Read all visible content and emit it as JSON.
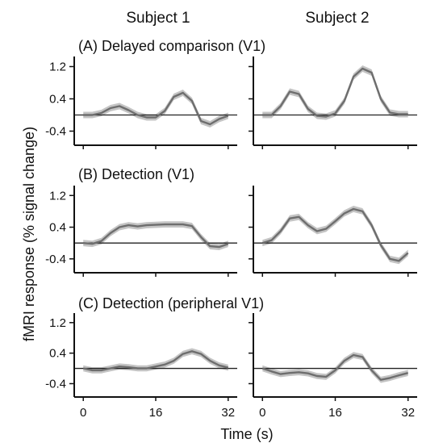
{
  "chart_data": {
    "type": "line",
    "columns": [
      "Subject 1",
      "Subject 2"
    ],
    "xlabel": "Time (s)",
    "ylabel": "fMRI response (% signal change)",
    "xlim": [
      -2,
      34
    ],
    "ylim": [
      -0.75,
      1.45
    ],
    "xticks": [
      "0",
      "16",
      "32"
    ],
    "yticks": [
      "1.2",
      "0.4",
      "-0.4"
    ],
    "x": [
      0,
      2,
      4,
      6,
      8,
      10,
      12,
      14,
      16,
      18,
      20,
      22,
      24,
      26,
      28,
      30,
      32
    ],
    "band_halfwidth": 0.08,
    "colors": {
      "line": "#6e6e6e",
      "band": "#c4c4c4",
      "axis": "#111111",
      "baseline": "#222222"
    },
    "panels": [
      {
        "title": "(A) Delayed comparison (V1)",
        "series": [
          {
            "subject": "Subject 1",
            "values": [
              0.0,
              0.0,
              0.05,
              0.17,
              0.22,
              0.12,
              0.0,
              -0.06,
              -0.06,
              0.1,
              0.45,
              0.55,
              0.35,
              -0.15,
              -0.23,
              -0.1,
              -0.02
            ]
          },
          {
            "subject": "Subject 2",
            "values": [
              0.0,
              0.0,
              0.22,
              0.58,
              0.52,
              0.15,
              -0.02,
              -0.04,
              0.04,
              0.35,
              0.95,
              1.15,
              1.05,
              0.4,
              0.06,
              0.02,
              0.02
            ]
          }
        ]
      },
      {
        "title": "(B) Detection (V1)",
        "series": [
          {
            "subject": "Subject 1",
            "values": [
              0.0,
              -0.02,
              0.05,
              0.25,
              0.4,
              0.45,
              0.42,
              0.45,
              0.46,
              0.47,
              0.47,
              0.47,
              0.43,
              0.15,
              -0.08,
              -0.1,
              -0.02
            ]
          },
          {
            "subject": "Subject 2",
            "values": [
              0.0,
              0.07,
              0.3,
              0.62,
              0.66,
              0.45,
              0.3,
              0.36,
              0.55,
              0.75,
              0.86,
              0.8,
              0.45,
              -0.05,
              -0.4,
              -0.45,
              -0.25
            ]
          }
        ]
      },
      {
        "title": "(C) Detection (peripheral V1)",
        "series": [
          {
            "subject": "Subject 1",
            "values": [
              0.0,
              -0.05,
              -0.05,
              0.0,
              0.05,
              0.03,
              0.0,
              0.0,
              0.05,
              0.1,
              0.2,
              0.38,
              0.45,
              0.38,
              0.2,
              0.08,
              0.02
            ]
          },
          {
            "subject": "Subject 2",
            "values": [
              0.0,
              -0.08,
              -0.15,
              -0.12,
              -0.1,
              -0.13,
              -0.2,
              -0.22,
              -0.05,
              0.2,
              0.35,
              0.3,
              -0.05,
              -0.3,
              -0.25,
              -0.18,
              -0.12
            ]
          }
        ]
      }
    ]
  }
}
